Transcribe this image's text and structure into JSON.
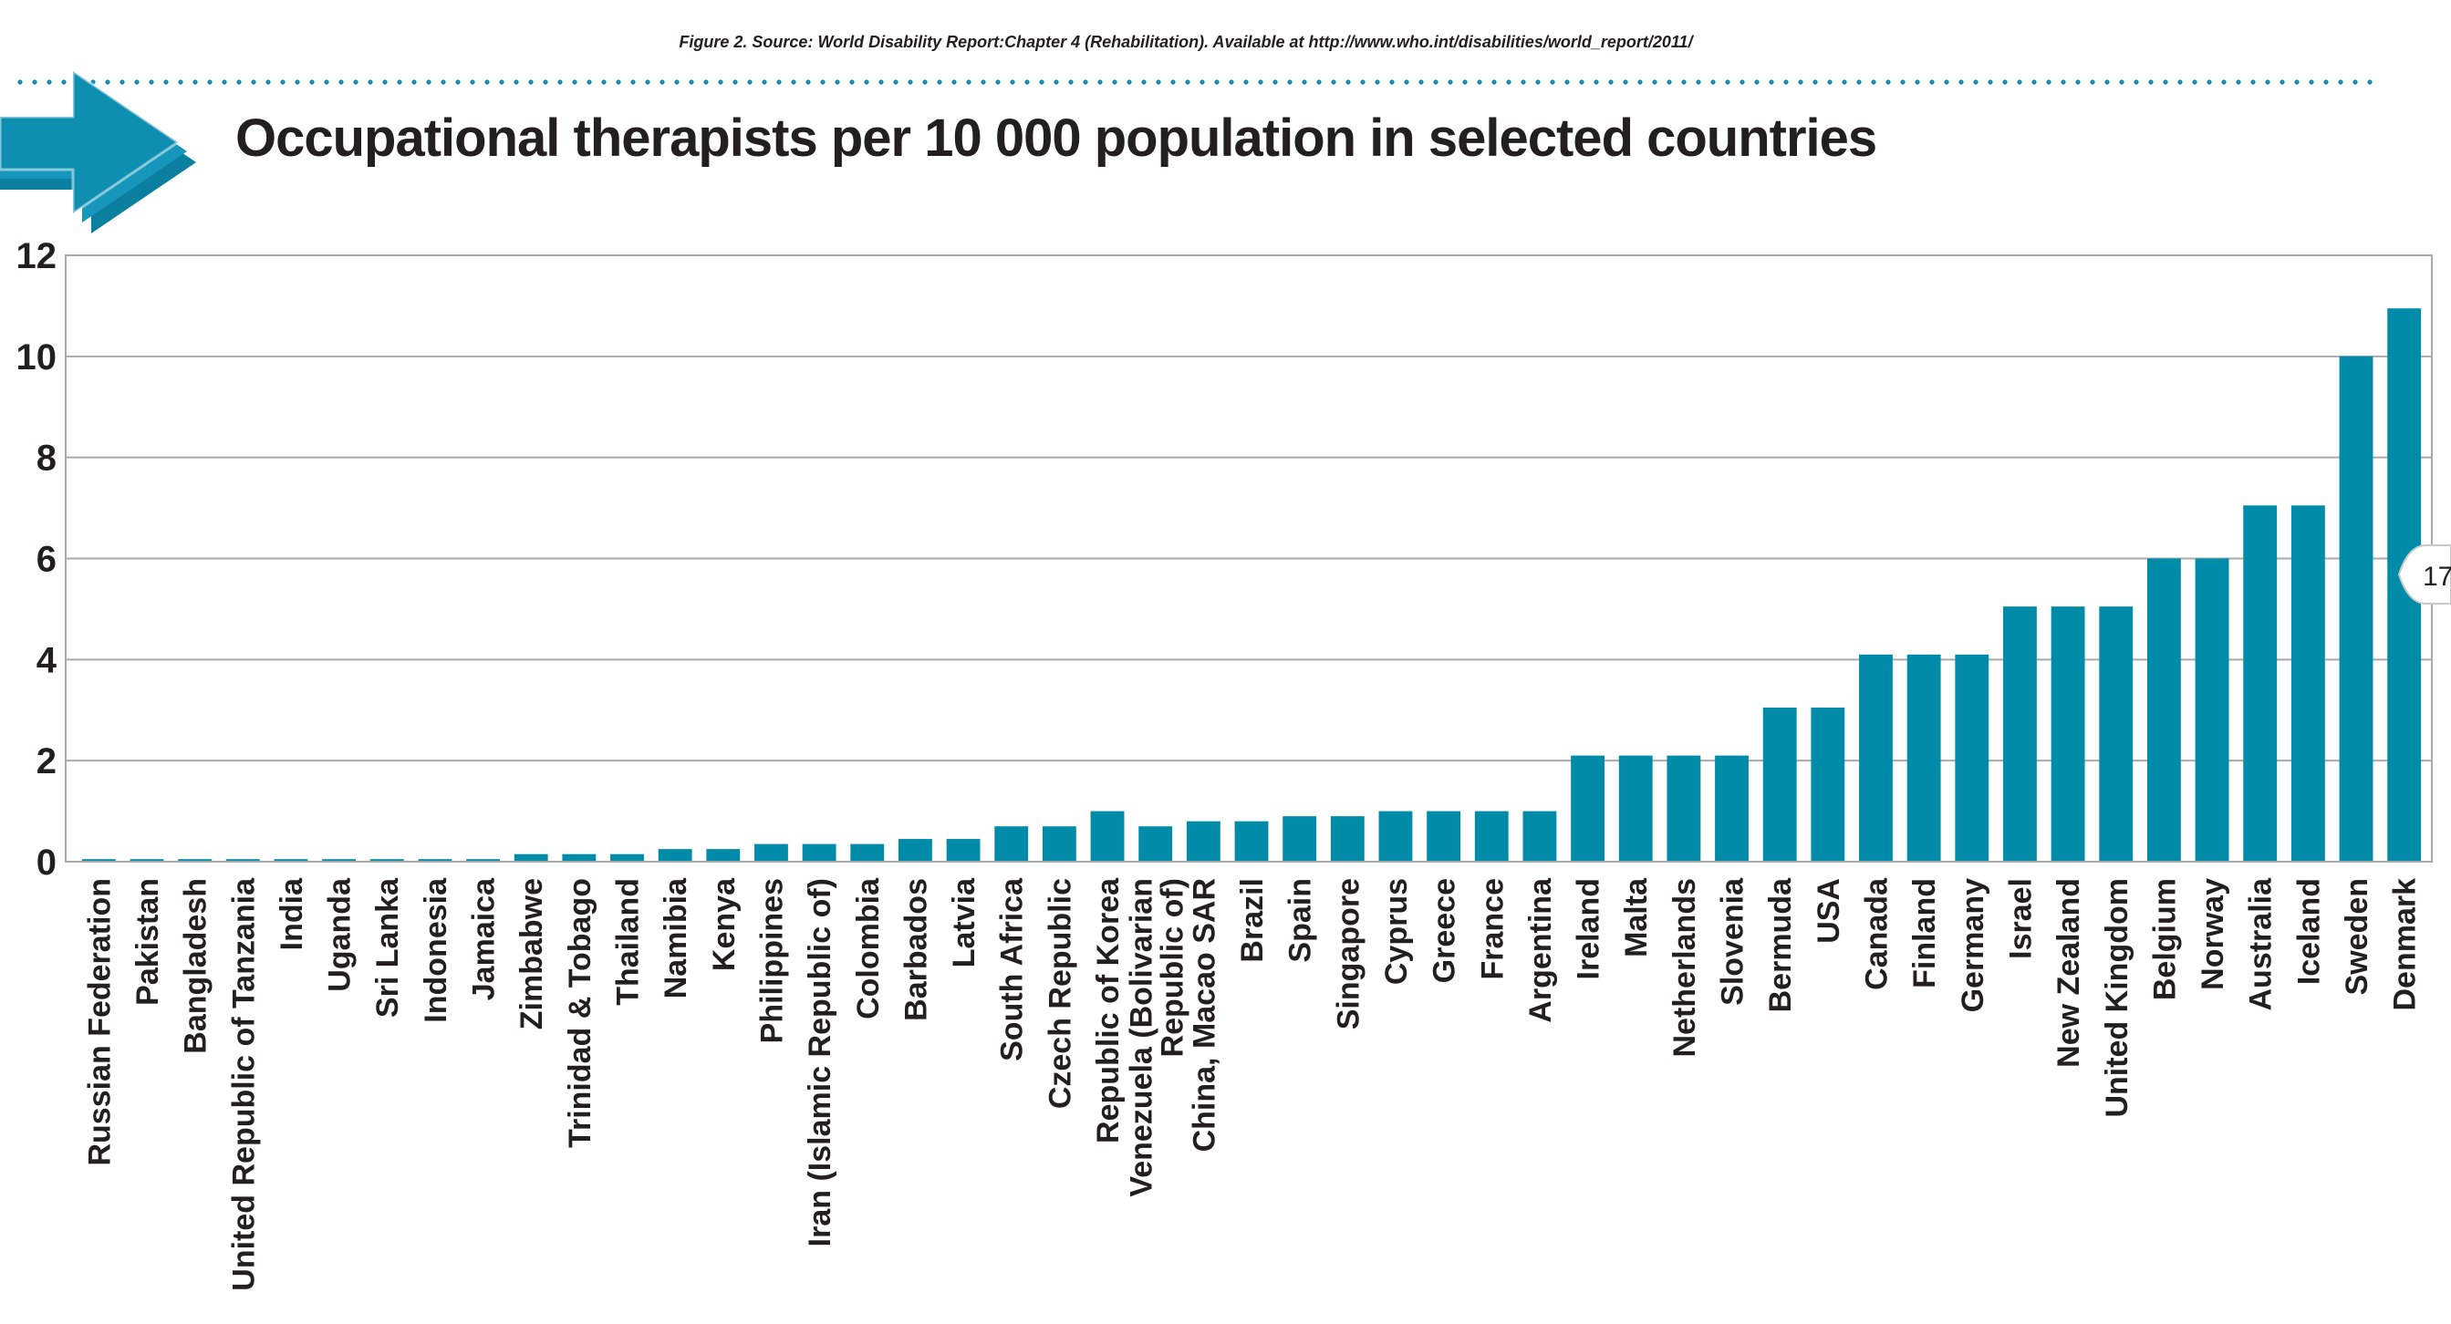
{
  "source_note": "Figure 2. Source: World Disability Report:Chapter 4 (Rehabilitation). Available at http://www.who.int/disabilities/world_report/2011/",
  "badge_text": "17",
  "colors": {
    "bar": "#008ca8",
    "arrow": "#0e8eb1",
    "grid": "#a7a9ac",
    "text": "#231f20"
  },
  "chart_data": {
    "type": "bar",
    "title": "Occupational therapists per 10 000 population in selected countries",
    "xlabel": "",
    "ylabel": "",
    "ylim": [
      0,
      12
    ],
    "yticks": [
      "0",
      "2",
      "4",
      "6",
      "8",
      "10",
      "12"
    ],
    "grid": true,
    "legend": "none",
    "categories": [
      "Russian Federation",
      "Pakistan",
      "Bangladesh",
      "United Republic of Tanzania",
      "India",
      "Uganda",
      "Sri Lanka",
      "Indonesia",
      "Jamaica",
      "Zimbabwe",
      "Trinidad & Tobago",
      "Thailand",
      "Namibia",
      "Kenya",
      "Philippines",
      "Iran (Islamic Republic of)",
      "Colombia",
      "Barbados",
      "Latvia",
      "South Africa",
      "Czech Republic",
      "Republic of Korea",
      "Venezuela (Bolivarian|Republic of)",
      "China, Macao SAR",
      "Brazil",
      "Spain",
      "Singapore",
      "Cyprus",
      "Greece",
      "France",
      "Argentina",
      "Ireland",
      "Malta",
      "Netherlands",
      "Slovenia",
      "Bermuda",
      "USA",
      "Canada",
      "Finland",
      "Germany",
      "Israel",
      "New Zealand",
      "United Kingdom",
      "Belgium",
      "Norway",
      "Australia",
      "Iceland",
      "Sweden",
      "Denmark"
    ],
    "values": [
      0.05,
      0.05,
      0.05,
      0.05,
      0.05,
      0.05,
      0.05,
      0.05,
      0.05,
      0.15,
      0.15,
      0.15,
      0.25,
      0.25,
      0.35,
      0.35,
      0.35,
      0.45,
      0.45,
      0.7,
      0.7,
      1.0,
      0.7,
      0.8,
      0.8,
      0.9,
      0.9,
      1.0,
      1.0,
      1.0,
      1.0,
      2.1,
      2.1,
      2.1,
      2.1,
      3.05,
      3.05,
      4.1,
      4.1,
      4.1,
      5.05,
      5.05,
      5.05,
      6.0,
      6.0,
      7.05,
      7.05,
      10.0,
      10.95
    ]
  }
}
